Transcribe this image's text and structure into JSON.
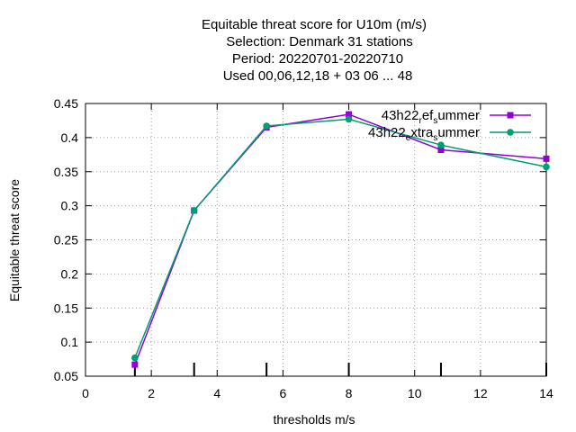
{
  "chart_data": {
    "type": "line",
    "title_lines": [
      "Equitable threat score  for U10m (m/s)",
      "Selection: Denmark     31 stations",
      "Period: 20220701-20220710",
      "Used  00,06,12,18  + 03 06 ... 48"
    ],
    "xlabel": "thresholds m/s",
    "ylabel": "Equitable threat score",
    "xlim": [
      0,
      14
    ],
    "ylim": [
      0.05,
      0.45
    ],
    "xticks": [
      0,
      2,
      4,
      6,
      8,
      10,
      12,
      14
    ],
    "yticks": [
      0.05,
      0.1,
      0.15,
      0.2,
      0.25,
      0.3,
      0.35,
      0.4,
      0.45
    ],
    "threshold_marks": [
      1.5,
      3.3,
      5.5,
      8,
      10.8,
      14
    ],
    "grid": true,
    "legend_position": "top-right",
    "series": [
      {
        "name": "43h22_ref_summer",
        "legend_parts": [
          "43h22",
          "r",
          "ef",
          "s",
          "ummer"
        ],
        "color": "#9400d3",
        "x": [
          1.5,
          3.3,
          5.5,
          8,
          10.8,
          14
        ],
        "y": [
          0.067,
          0.293,
          0.415,
          0.434,
          0.382,
          0.369
        ]
      },
      {
        "name": "43h22_extra_summer",
        "legend_parts": [
          "43h22",
          "e",
          "xtra",
          "s",
          "ummer"
        ],
        "color": "#009e73",
        "x": [
          1.5,
          3.3,
          5.5,
          8,
          10.8,
          14
        ],
        "y": [
          0.077,
          0.293,
          0.417,
          0.427,
          0.389,
          0.357
        ]
      }
    ]
  }
}
